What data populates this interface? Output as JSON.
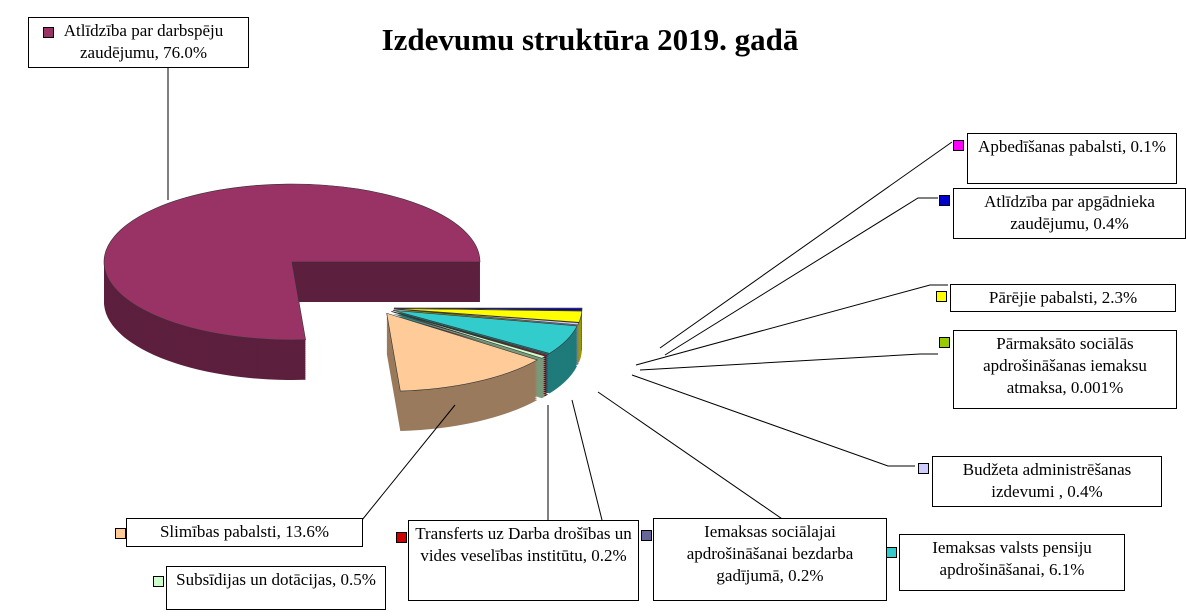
{
  "chart_data": {
    "type": "pie",
    "title": "Izdevumu struktūra 2019. gadā",
    "values": [
      76.0,
      13.6,
      0.5,
      0.2,
      0.2,
      6.1,
      0.4,
      0.001,
      2.3,
      0.4,
      0.1
    ],
    "value_labels": [
      "Atlīdzība par darbspēju zaudējumu, 76.0%",
      "Slimības pabalsti, 13.6%",
      "Subsīdijas un dotācijas, 0.5%",
      "Transferts uz Darba drošības un vides veselības institūtu, 0.2%",
      "Iemaksas sociālajai apdrošināšanai bezdarba gadījumā, 0.2%",
      "Iemaksas valsts pensiju apdrošināšanai, 6.1%",
      "Budžeta administrēšanas izdevumi , 0.4%",
      "Pārmaksāto sociālās apdrošināšanas iemaksu atmaksa, 0.001%",
      "Pārējie pabalsti, 2.3%",
      "Atlīdzība par apgādnieka zaudējumu, 0.4%",
      "Apbedīšanas pabalsti, 0.1%"
    ],
    "colors": [
      "#993366",
      "#ffcc99",
      "#ccffcc",
      "#cc0000",
      "#666699",
      "#33cccc",
      "#ccccff",
      "#99cc00",
      "#ffff00",
      "#0000cc",
      "#ff00ff"
    ]
  }
}
